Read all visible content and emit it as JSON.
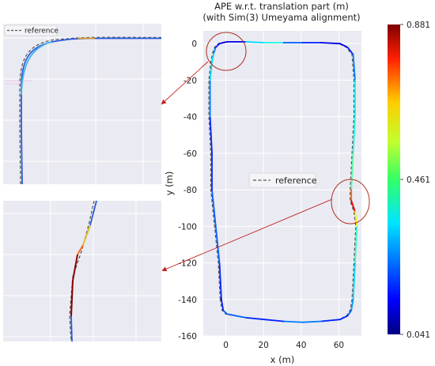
{
  "chart_data": [
    {
      "type": "line",
      "title_line1": "APE w.r.t. translation part (m)",
      "title_line2": "(with Sim(3) Umeyama alignment)",
      "xlabel": "x (m)",
      "ylabel": "y (m)",
      "xlim": [
        -12,
        72
      ],
      "ylim": [
        -160,
        7
      ],
      "x_ticks": [
        0,
        20,
        40,
        60
      ],
      "y_ticks": [
        0,
        -20,
        -40,
        -60,
        -80,
        -100,
        -120,
        -140,
        -160
      ],
      "grid": true,
      "legend": {
        "position": "center-right",
        "entries": [
          "reference"
        ]
      },
      "colorbar": {
        "colormap": "jet",
        "min": 0.041,
        "mid": 0.461,
        "max": 0.881,
        "tick_labels": [
          "0.881",
          "0.461",
          "0.041"
        ]
      },
      "series": [
        {
          "name": "reference",
          "style": "dashed",
          "color": "#555555",
          "x": [
            -3,
            -4,
            -6,
            -8,
            -8,
            -9,
            -9,
            -8,
            -7,
            -6,
            -4,
            0,
            10,
            20,
            30,
            40,
            50,
            60,
            64,
            67,
            68,
            68,
            67,
            66,
            66,
            68,
            69,
            68,
            67,
            66,
            64,
            60,
            50,
            40,
            30,
            20,
            10,
            0,
            -2,
            -3
          ],
          "y": [
            -140,
            -120,
            -100,
            -80,
            -60,
            -40,
            -20,
            -10,
            -5,
            -2,
            0,
            1,
            1,
            0.5,
            0.5,
            0.5,
            0.5,
            0,
            -2,
            -6,
            -20,
            -40,
            -60,
            -80,
            -86,
            -92,
            -100,
            -120,
            -140,
            -146,
            -149,
            -151,
            -152,
            -152.5,
            -152,
            -151,
            -150,
            -148,
            -146,
            -140
          ]
        },
        {
          "name": "",
          "style": "colored-by-error",
          "x": [
            -3,
            -4,
            -6,
            -8,
            -8,
            -9,
            -9,
            -8,
            -7,
            -6,
            -4,
            0,
            10,
            20,
            30,
            40,
            50,
            60,
            64,
            67,
            68,
            68,
            67,
            66,
            66,
            68,
            69,
            68,
            67,
            66,
            64,
            60,
            50,
            40,
            30,
            20,
            10,
            0,
            -2,
            -3
          ],
          "y": [
            -140,
            -120,
            -100,
            -80,
            -60,
            -40,
            -20,
            -10,
            -5,
            -2,
            0,
            1,
            1,
            0.5,
            0.5,
            0.5,
            0.5,
            0,
            -2,
            -6,
            -20,
            -40,
            -60,
            -80,
            -86,
            -92,
            -100,
            -120,
            -140,
            -146,
            -149,
            -151,
            -152,
            -152.5,
            -152,
            -151,
            -150,
            -148,
            -146,
            -140
          ],
          "error": [
            0.15,
            0.2,
            0.25,
            0.2,
            0.15,
            0.2,
            0.3,
            0.35,
            0.3,
            0.2,
            0.15,
            0.1,
            0.15,
            0.5,
            0.25,
            0.2,
            0.15,
            0.1,
            0.15,
            0.2,
            0.3,
            0.4,
            0.35,
            0.5,
            0.88,
            0.7,
            0.45,
            0.35,
            0.3,
            0.25,
            0.2,
            0.15,
            0.2,
            0.3,
            0.2,
            0.15,
            0.2,
            0.25,
            0.2,
            0.15
          ]
        }
      ]
    },
    {
      "type": "line",
      "panel": "inset-top-left",
      "legend": {
        "position": "top-left",
        "entries": [
          "reference"
        ]
      },
      "grid": true,
      "series": [
        {
          "name": "reference",
          "style": "dashed",
          "color": "#555555"
        },
        {
          "name": "",
          "style": "colored-by-error"
        }
      ]
    },
    {
      "type": "line",
      "panel": "inset-bottom-left",
      "grid": true,
      "series": [
        {
          "name": "",
          "style": "dashed",
          "color": "#555555"
        },
        {
          "name": "",
          "style": "colored-by-error"
        }
      ]
    }
  ],
  "colors": {
    "plot_bg": "#eaeaf2",
    "grid": "#ffffff",
    "circle": "#b03020",
    "arrow": "#c02020"
  }
}
